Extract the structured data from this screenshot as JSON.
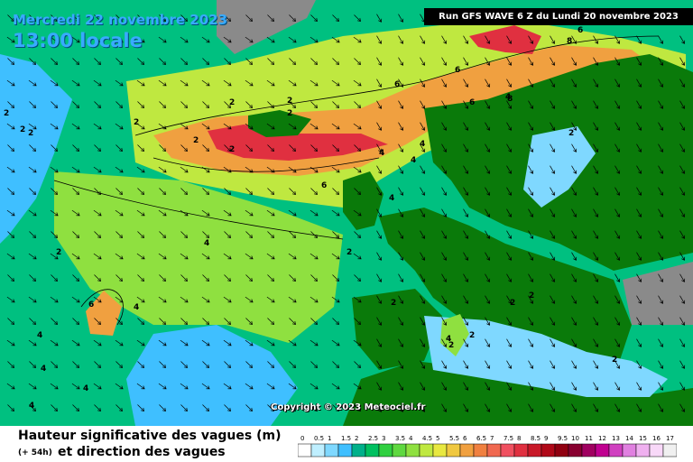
{
  "header": {
    "date": "Mercredi 22 novembre 2023",
    "time": "13:00 locale",
    "run": "Run GFS WAVE 6 Z du Lundi 20 novembre 2023"
  },
  "copyright": "Copyright © 2023 Meteociel.fr",
  "footer": {
    "title_line1": "Hauteur significative des vagues (m)",
    "title_line2": "et direction des vagues",
    "lead": "(+ 54h)"
  },
  "scale": {
    "labels": [
      "0",
      "0.5",
      "1",
      "1.5",
      "2",
      "2.5",
      "3",
      "3.5",
      "4",
      "4.5",
      "5",
      "5.5",
      "6",
      "6.5",
      "7",
      "7.5",
      "8",
      "8.5",
      "9",
      "9.5",
      "10",
      "11",
      "12",
      "13",
      "14",
      "15",
      "16",
      "17"
    ],
    "colors": [
      "#ffffff",
      "#bfefff",
      "#7fd8ff",
      "#3fbfff",
      "#00b08a",
      "#00c060",
      "#30cf40",
      "#5fd840",
      "#8fe040",
      "#bfe840",
      "#e8e840",
      "#f0c840",
      "#f0a040",
      "#f08040",
      "#f06850",
      "#f05060",
      "#e03040",
      "#c81828",
      "#b00818",
      "#900010",
      "#880030",
      "#a00060",
      "#c00090",
      "#d040c0",
      "#e080e0",
      "#f0b0f0",
      "#f8d8f8",
      "#f0f0f0"
    ]
  },
  "contour_labels": [
    "2",
    "2",
    "2",
    "2",
    "2",
    "2",
    "2",
    "2",
    "2",
    "2",
    "2",
    "2",
    "2",
    "2",
    "2",
    "2",
    "2",
    "2",
    "4",
    "4",
    "4",
    "4",
    "4",
    "4",
    "4",
    "4",
    "4",
    "4",
    "4",
    "4",
    "6",
    "6",
    "6",
    "6",
    "6",
    "6",
    "8",
    "8"
  ],
  "colors": {
    "land": "#0a7a0a",
    "sea_low": "#3fbfff",
    "sea_mid": "#2ec070",
    "sea_high": "#f0c840",
    "peak": "#e03040",
    "ice_grey": "#8a8a8a"
  }
}
